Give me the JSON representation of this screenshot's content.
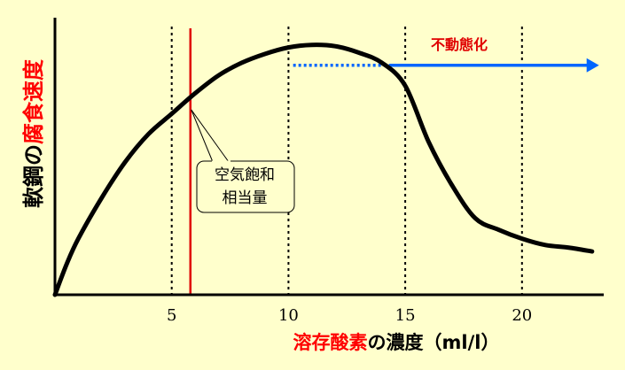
{
  "chart_data": {
    "type": "line",
    "background": "#FFFFCC",
    "xlim": [
      0,
      23.5
    ],
    "ylim": [
      0,
      100
    ],
    "xticks": [
      "5",
      "10",
      "15",
      "20"
    ],
    "xtick_values": [
      5,
      10,
      15,
      20
    ],
    "ylabel": {
      "part1": "軟鋼の",
      "part2": "腐食速度",
      "part1_color": "#000000",
      "part2_color": "#FF0000"
    },
    "xlabel": {
      "part1": "溶存酸素",
      "part2": "の濃度（ml/l）",
      "part1_color": "#FF0000",
      "part2_color": "#000000"
    },
    "series": [
      {
        "values": [
          [
            0,
            0
          ],
          [
            0.5,
            12
          ],
          [
            1,
            22
          ],
          [
            2,
            38
          ],
          [
            3,
            52
          ],
          [
            4,
            63
          ],
          [
            5,
            71
          ],
          [
            6,
            79
          ],
          [
            7,
            86
          ],
          [
            8,
            91
          ],
          [
            9,
            94.5
          ],
          [
            10,
            97
          ],
          [
            11,
            98
          ],
          [
            12,
            97.5
          ],
          [
            13,
            95
          ],
          [
            14,
            91
          ],
          [
            15,
            82
          ],
          [
            16,
            60
          ],
          [
            17,
            43
          ],
          [
            18,
            30
          ],
          [
            19,
            25.5
          ],
          [
            20,
            22
          ],
          [
            21,
            19.5
          ],
          [
            22,
            18.5
          ],
          [
            23,
            17
          ]
        ],
        "color": "#000000"
      }
    ],
    "vlines_dotted": [
      5,
      10,
      15,
      20
    ],
    "air_saturation": {
      "x": 5.8,
      "color": "#E00000"
    },
    "annotation": {
      "line1": "空気飽和",
      "line2": "相当量"
    },
    "passivation": {
      "label": "不動態化",
      "from_x": 10.2,
      "to_x": 23.3,
      "y": 90,
      "color": "#0066FF"
    }
  }
}
